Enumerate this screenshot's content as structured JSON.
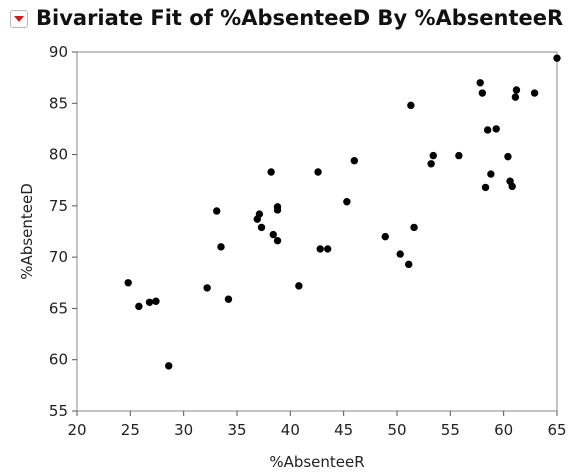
{
  "title": "Bivariate Fit of %AbsenteeD By %AbsenteeR",
  "icons": {
    "disclosure": "red-disclosure-triangle-icon"
  },
  "chart_data": {
    "type": "scatter",
    "title": "Bivariate Fit of %AbsenteeD By %AbsenteeR",
    "xlabel": "%AbsenteeR",
    "ylabel": "%AbsenteeD",
    "xlim": [
      20,
      65
    ],
    "ylim": [
      55,
      90
    ],
    "xticks": [
      20,
      25,
      30,
      35,
      40,
      45,
      50,
      55,
      60,
      65
    ],
    "yticks": [
      55,
      60,
      65,
      70,
      75,
      80,
      85,
      90
    ],
    "grid": false,
    "marker_color": "#000000",
    "points": [
      [
        24.8,
        67.5
      ],
      [
        25.8,
        65.2
      ],
      [
        26.8,
        65.6
      ],
      [
        27.4,
        65.7
      ],
      [
        28.6,
        59.4
      ],
      [
        32.2,
        67.0
      ],
      [
        33.1,
        74.5
      ],
      [
        33.5,
        71.0
      ],
      [
        34.2,
        65.9
      ],
      [
        36.9,
        73.7
      ],
      [
        37.1,
        74.2
      ],
      [
        37.3,
        72.9
      ],
      [
        38.2,
        78.3
      ],
      [
        38.4,
        72.2
      ],
      [
        38.8,
        74.6
      ],
      [
        38.8,
        74.9
      ],
      [
        38.8,
        71.6
      ],
      [
        40.8,
        67.2
      ],
      [
        42.6,
        78.3
      ],
      [
        42.8,
        70.8
      ],
      [
        43.5,
        70.8
      ],
      [
        45.3,
        75.4
      ],
      [
        46.0,
        79.4
      ],
      [
        48.9,
        72.0
      ],
      [
        50.3,
        70.3
      ],
      [
        51.1,
        69.3
      ],
      [
        51.3,
        84.8
      ],
      [
        51.6,
        72.9
      ],
      [
        53.2,
        79.1
      ],
      [
        53.4,
        79.9
      ],
      [
        55.8,
        79.9
      ],
      [
        57.8,
        87.0
      ],
      [
        58.0,
        86.0
      ],
      [
        58.3,
        76.8
      ],
      [
        58.5,
        82.4
      ],
      [
        58.8,
        78.1
      ],
      [
        59.3,
        82.5
      ],
      [
        60.4,
        79.8
      ],
      [
        60.6,
        77.4
      ],
      [
        60.8,
        76.9
      ],
      [
        61.1,
        85.6
      ],
      [
        61.2,
        86.3
      ],
      [
        62.9,
        86.0
      ],
      [
        65.0,
        89.4
      ]
    ]
  }
}
